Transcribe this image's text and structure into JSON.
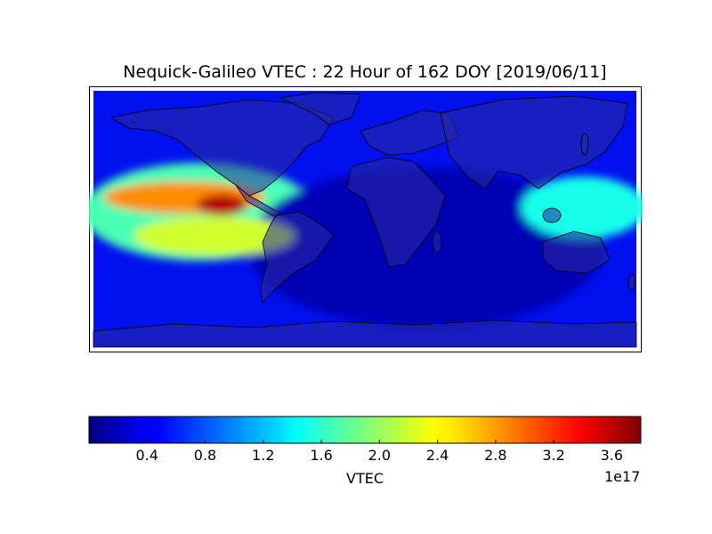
{
  "chart_data": {
    "type": "heatmap",
    "title": "Nequick-Galileo VTEC : 22 Hour of 162 DOY [2019/06/11]",
    "projection": "equirectangular world map",
    "colormap": "jet",
    "colorbar": {
      "label": "VTEC",
      "ticks": [
        "0.4",
        "0.8",
        "1.2",
        "1.6",
        "2.0",
        "2.4",
        "2.8",
        "3.2",
        "3.6"
      ],
      "multiplier": "1e17",
      "range": [
        0.0,
        3.8
      ]
    },
    "features": [
      {
        "description": "maximum VTEC over Central America / Caribbean",
        "lon": -95,
        "lat": 10,
        "value": 3.6
      },
      {
        "description": "enhanced band over eastern Pacific north of equator",
        "lon": -120,
        "lat": 15,
        "value": 2.8
      },
      {
        "description": "secondary band over eastern Pacific south of equator",
        "lon": -100,
        "lat": -12,
        "value": 2.2
      },
      {
        "description": "moderate values over western Pacific / Indonesia",
        "lon": 145,
        "lat": 8,
        "value": 1.5
      },
      {
        "description": "low values over Africa, Indian Ocean and southern latitudes",
        "lon": 40,
        "lat": -20,
        "value": 0.2
      }
    ]
  }
}
